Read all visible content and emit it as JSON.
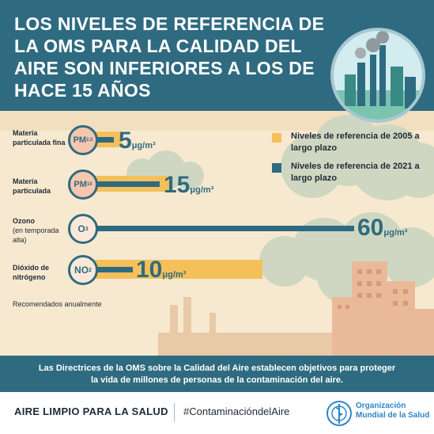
{
  "header": {
    "title": "LOS NIVELES DE REFERENCIA DE LA OMS PARA LA CALIDAD DEL AIRE SON INFERIORES A LOS DE HACE 15 AÑOS"
  },
  "legend": [
    {
      "label": "Niveles de referencia de 2005 a largo plazo",
      "color": "#f5c05a"
    },
    {
      "label": "Niveles de referencia de 2021 a largo plazo",
      "color": "#2f6b80"
    }
  ],
  "pollutants": [
    {
      "name": "Materia particulada fina",
      "sub": "",
      "symbol": "PM",
      "symbol_sub": "2,5",
      "value": "5",
      "unit": "μg/m³",
      "ref_2005": 10,
      "ref_2021": 5
    },
    {
      "name": "Materia particulada",
      "sub": "",
      "symbol": "PM",
      "symbol_sub": "10",
      "value": "15",
      "unit": "μg/m³",
      "ref_2005": 20,
      "ref_2021": 15
    },
    {
      "name": "Ozono",
      "sub": "(en temporada alta)",
      "symbol": "O",
      "symbol_sub": "3",
      "value": "60",
      "unit": "μg/m³",
      "ref_2005": null,
      "ref_2021": 60
    },
    {
      "name": "Dióxido de nitrógeno",
      "sub": "",
      "symbol": "NO",
      "symbol_sub": "2",
      "value": "10",
      "unit": "μg/m³",
      "ref_2005": 40,
      "ref_2021": 10
    }
  ],
  "footnote": "Recomendados anualmente",
  "banner": {
    "line1": "Las Directrices de la OMS sobre la Calidad del Aire establecen objetivos para proteger",
    "line2": "la vida de millones de personas de la contaminación del aire."
  },
  "footer": {
    "left": "AIRE LIMPIO PARA LA SALUD",
    "hashtag": "#ContaminacióndelAire",
    "org_line1": "Organización",
    "org_line2": "Mundial de la Salud"
  },
  "colors": {
    "teal": "#2f6b80",
    "yellow": "#f5c05a",
    "cream": "#f7e9cf",
    "who_blue": "#2e86c8"
  }
}
